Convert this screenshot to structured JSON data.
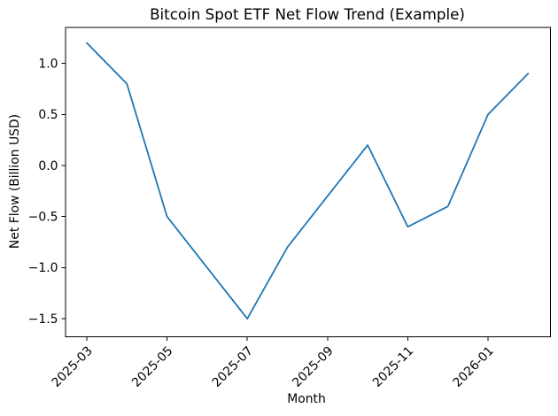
{
  "chart_data": {
    "type": "line",
    "title": "Bitcoin Spot ETF Net Flow Trend (Example)",
    "xlabel": "Month",
    "ylabel": "Net Flow (Billion USD)",
    "categories": [
      "2025-03",
      "2025-04",
      "2025-05",
      "2025-06",
      "2025-07",
      "2025-08",
      "2025-09",
      "2025-10",
      "2025-11",
      "2025-12",
      "2026-01",
      "2026-02"
    ],
    "values": [
      1.2,
      0.8,
      -0.5,
      -1.0,
      -1.5,
      -0.8,
      -0.3,
      0.2,
      -0.6,
      -0.4,
      0.5,
      0.9
    ],
    "xtick_labels": [
      "2025-03",
      "2025-05",
      "2025-07",
      "2025-09",
      "2025-11",
      "2026-01"
    ],
    "xtick_rotation_deg": 45,
    "yticks": [
      1.0,
      0.5,
      0.0,
      -0.5,
      -1.0,
      -1.5
    ],
    "ytick_labels": [
      "1.0",
      "0.5",
      "0.0",
      "−0.5",
      "−1.0",
      "−1.5"
    ],
    "ylim": [
      -1.68,
      1.35
    ],
    "xlim_margin_months": 0.54,
    "grid": false,
    "legend": "none",
    "line_color": "#1f77b4",
    "axis_color": "#000000",
    "background_color": "#ffffff"
  }
}
